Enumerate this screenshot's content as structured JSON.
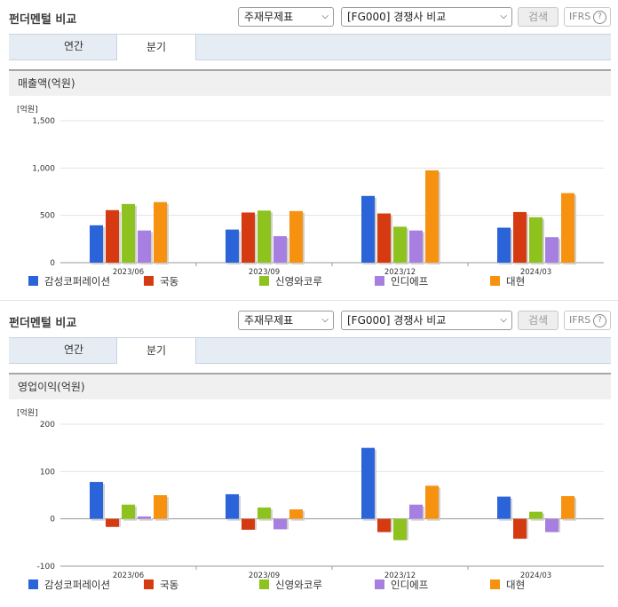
{
  "sections": [
    {
      "title": "펀더멘털 비교",
      "select1": "주재무제표",
      "select2": "[FG000] 경쟁사 비교",
      "search_label": "검색",
      "ifrs_label": "IFRS",
      "help_glyph": "?",
      "tabs": [
        {
          "label": "연간"
        },
        {
          "label": "분기",
          "active": true
        }
      ],
      "metric_label": "매출액(억원)"
    },
    {
      "title": "펀더멘털 비교",
      "select1": "주재무제표",
      "select2": "[FG000] 경쟁사 비교",
      "search_label": "검색",
      "ifrs_label": "IFRS",
      "help_glyph": "?",
      "tabs": [
        {
          "label": "연간"
        },
        {
          "label": "분기",
          "active": true
        }
      ],
      "metric_label": "영업이익(억원)"
    }
  ],
  "chart_data": [
    {
      "type": "bar",
      "unit_label": "[억원]",
      "categories": [
        "2023/06",
        "2023/09",
        "2023/12",
        "2024/03"
      ],
      "ylim": [
        0,
        1500
      ],
      "yticks": [
        0,
        500,
        1000,
        1500
      ],
      "ytick_labels": [
        "0",
        "500",
        "1,000",
        "1,500"
      ],
      "grid": true,
      "legend_position": "bottom",
      "series": [
        {
          "name": "감성코퍼레이션",
          "color": "#2b63d9",
          "values": [
            395,
            350,
            705,
            370
          ]
        },
        {
          "name": "국동",
          "color": "#d63a10",
          "values": [
            555,
            530,
            520,
            535
          ]
        },
        {
          "name": "신영와코루",
          "color": "#8dc21f",
          "values": [
            620,
            550,
            380,
            480
          ]
        },
        {
          "name": "인디에프",
          "color": "#a77fe0",
          "values": [
            340,
            280,
            340,
            270
          ]
        },
        {
          "name": "대현",
          "color": "#f6920f",
          "values": [
            640,
            545,
            975,
            735
          ]
        }
      ]
    },
    {
      "type": "bar",
      "unit_label": "[억원]",
      "categories": [
        "2023/06",
        "2023/09",
        "2023/12",
        "2024/03"
      ],
      "ylim": [
        -100,
        200
      ],
      "yticks": [
        -100,
        0,
        100,
        200
      ],
      "ytick_labels": [
        "-100",
        "0",
        "100",
        "200"
      ],
      "grid": true,
      "legend_position": "bottom",
      "series": [
        {
          "name": "감성코퍼레이션",
          "color": "#2b63d9",
          "values": [
            78,
            52,
            150,
            47
          ]
        },
        {
          "name": "국동",
          "color": "#d63a10",
          "values": [
            -17,
            -23,
            -28,
            -42
          ]
        },
        {
          "name": "신영와코루",
          "color": "#8dc21f",
          "values": [
            30,
            24,
            -45,
            15
          ]
        },
        {
          "name": "인디에프",
          "color": "#a77fe0",
          "values": [
            5,
            -22,
            30,
            -28
          ]
        },
        {
          "name": "대현",
          "color": "#f6920f",
          "values": [
            50,
            20,
            70,
            48
          ]
        }
      ]
    }
  ]
}
